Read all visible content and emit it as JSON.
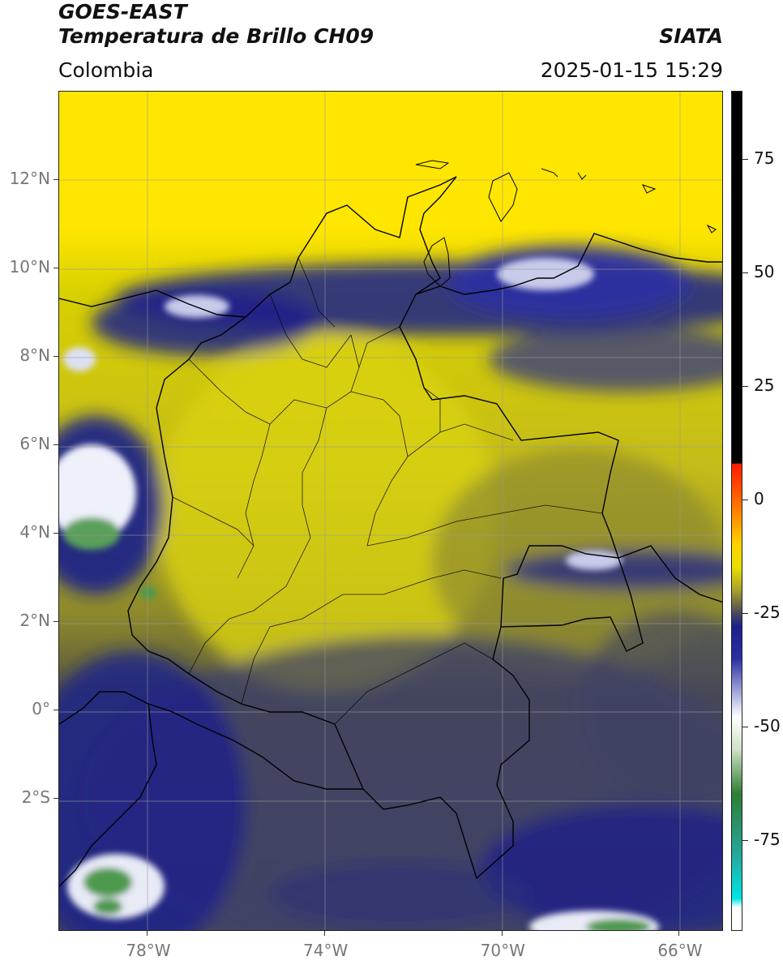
{
  "header": {
    "satellite": "GOES-EAST",
    "product": "Temperatura de Brillo CH09",
    "region": "Colombia",
    "brand": "SIATA",
    "datetime": "2025-01-15 15:29"
  },
  "map": {
    "lon_range": [
      -80,
      -65
    ],
    "lat_range": [
      -5,
      14
    ],
    "lat_ticks": [
      {
        "value": 12,
        "label": "12°N"
      },
      {
        "value": 10,
        "label": "10°N"
      },
      {
        "value": 8,
        "label": "8°N"
      },
      {
        "value": 6,
        "label": "6°N"
      },
      {
        "value": 4,
        "label": "4°N"
      },
      {
        "value": 2,
        "label": "2°N"
      },
      {
        "value": 0,
        "label": "0°"
      },
      {
        "value": -2,
        "label": "2°S"
      }
    ],
    "lon_ticks": [
      {
        "value": -78,
        "label": "78°W"
      },
      {
        "value": -74,
        "label": "74°W"
      },
      {
        "value": -70,
        "label": "70°W"
      },
      {
        "value": -66,
        "label": "66°W"
      }
    ],
    "grid": true,
    "colors": {
      "warm_yellow": "#ffe600",
      "olive": "#b8b414",
      "dark_olive": "#5e5c3a",
      "slate": "#3c3f6e",
      "navy": "#1b1f8c",
      "cloud_white": "#e8eaf6",
      "green": "#4d9a4d"
    }
  },
  "colorbar": {
    "range": [
      -95,
      90
    ],
    "ticks": [
      {
        "value": 75,
        "label": "75"
      },
      {
        "value": 50,
        "label": "50"
      },
      {
        "value": 25,
        "label": "25"
      },
      {
        "value": 0,
        "label": "0"
      },
      {
        "value": -25,
        "label": "-25"
      },
      {
        "value": -50,
        "label": "-50"
      },
      {
        "value": -75,
        "label": "-75"
      }
    ],
    "stops": [
      {
        "value": 90,
        "color": "#000000"
      },
      {
        "value": 8,
        "color": "#000000"
      },
      {
        "value": 7.9,
        "color": "#ff1a00"
      },
      {
        "value": 0,
        "color": "#ff6600"
      },
      {
        "value": -10,
        "color": "#ffd400"
      },
      {
        "value": -15,
        "color": "#e6de00"
      },
      {
        "value": -20,
        "color": "#a8a02a"
      },
      {
        "value": -25,
        "color": "#4a4a5a"
      },
      {
        "value": -28,
        "color": "#1b1f8c"
      },
      {
        "value": -35,
        "color": "#2a2fa0"
      },
      {
        "value": -42,
        "color": "#9aa0d8"
      },
      {
        "value": -48,
        "color": "#ffffff"
      },
      {
        "value": -55,
        "color": "#cfe3c8"
      },
      {
        "value": -65,
        "color": "#2e7d32"
      },
      {
        "value": -78,
        "color": "#26a69a"
      },
      {
        "value": -88,
        "color": "#00e5e5"
      },
      {
        "value": -90,
        "color": "#ffffff"
      },
      {
        "value": -95,
        "color": "#ffffff"
      }
    ]
  }
}
